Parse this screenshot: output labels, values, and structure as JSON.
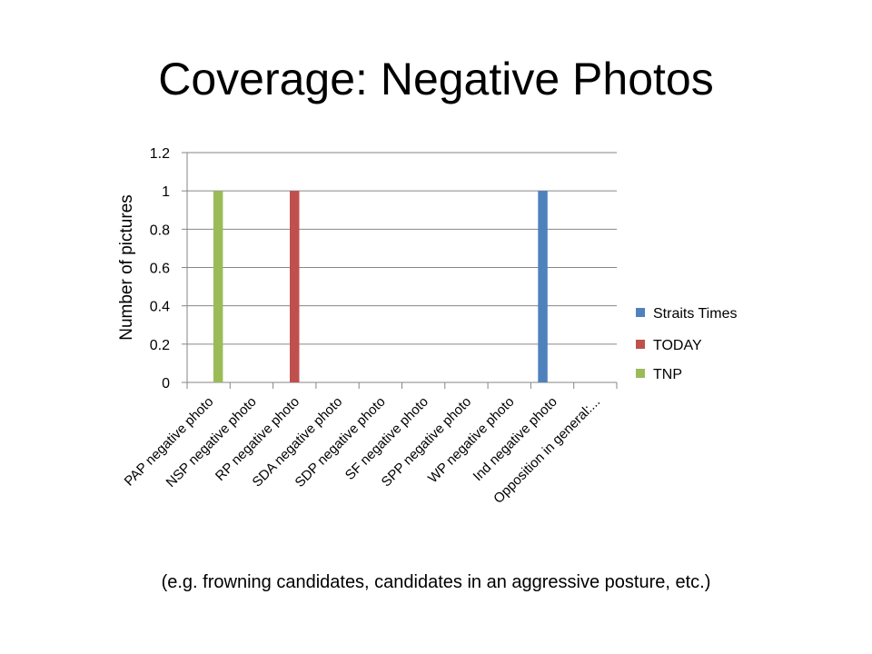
{
  "chart_data": {
    "type": "bar",
    "title": "Coverage: Negative Photos",
    "caption": "(e.g. frowning candidates, candidates in an aggressive posture, etc.)",
    "xlabel": "",
    "ylabel": "Number of pictures",
    "ylim": [
      0,
      1.2
    ],
    "yticks": [
      "0",
      "0.2",
      "0.4",
      "0.6",
      "0.8",
      "1",
      "1.2"
    ],
    "grid": true,
    "legend_position": "right",
    "categories": [
      "PAP negative photo",
      "NSP negative photo",
      "RP negative photo",
      "SDA negative photo",
      "SDP negative photo",
      "SF negative photo",
      "SPP negative photo",
      "WP negative photo",
      "Ind negative photo",
      "Opposition in general:..."
    ],
    "series": [
      {
        "name": "Straits Times",
        "color": "#4F81BD",
        "values": [
          0,
          0,
          0,
          0,
          0,
          0,
          0,
          0,
          1,
          0
        ]
      },
      {
        "name": "TODAY",
        "color": "#C0504D",
        "values": [
          0,
          0,
          1,
          0,
          0,
          0,
          0,
          0,
          0,
          0
        ]
      },
      {
        "name": "TNP",
        "color": "#9BBB59",
        "values": [
          1,
          0,
          0,
          0,
          0,
          0,
          0,
          0,
          0,
          0
        ]
      }
    ]
  }
}
